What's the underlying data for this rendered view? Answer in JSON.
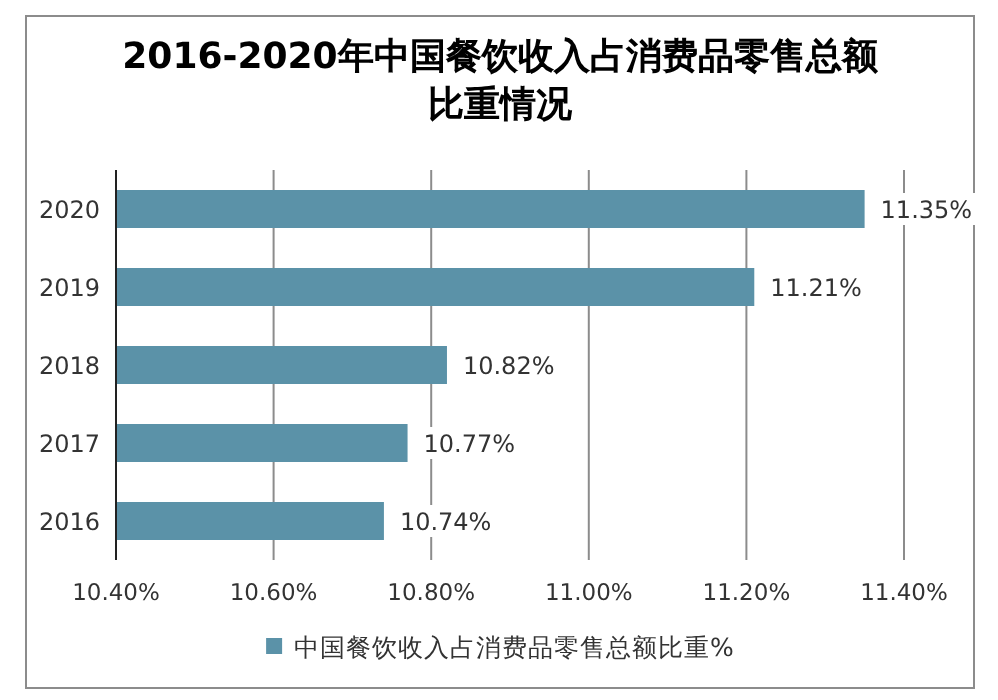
{
  "chart_data": {
    "type": "bar",
    "orientation": "horizontal",
    "title": "2016-2020年中国餐饮收入占消费品零售总额比重情况",
    "categories": [
      "2020",
      "2019",
      "2018",
      "2017",
      "2016"
    ],
    "series": [
      {
        "name": "中国餐饮收入占消费品零售总额比重%",
        "color": "#5b92a8",
        "values": [
          11.35,
          11.21,
          10.82,
          10.77,
          10.74
        ],
        "value_labels": [
          "11.35%",
          "11.21%",
          "10.82%",
          "10.77%",
          "10.74%"
        ]
      }
    ],
    "xlim": [
      10.4,
      11.4
    ],
    "xticks": [
      {
        "value": 10.4,
        "label": "10.40%"
      },
      {
        "value": 10.6,
        "label": "10.60%"
      },
      {
        "value": 10.8,
        "label": "10.80%"
      },
      {
        "value": 11.0,
        "label": "11.00%"
      },
      {
        "value": 11.2,
        "label": "11.20%"
      },
      {
        "value": 11.4,
        "label": "11.40%"
      }
    ],
    "grid": "x",
    "legend": "bottom"
  }
}
